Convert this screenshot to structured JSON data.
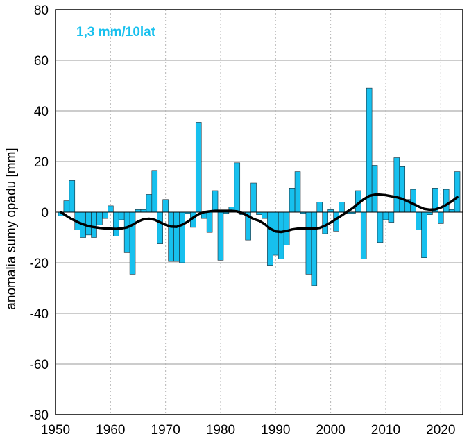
{
  "chart_data": {
    "type": "bar",
    "title": "",
    "xlabel": "",
    "ylabel": "anomalia sumy opadu [mm]",
    "trend_text": "1,3 mm/10lat",
    "xlim": [
      1950,
      2024
    ],
    "ylim": [
      -80,
      80
    ],
    "x_ticks": [
      1950,
      1960,
      1970,
      1980,
      1990,
      2000,
      2010,
      2020
    ],
    "y_ticks": [
      -80,
      -60,
      -40,
      -20,
      0,
      20,
      40,
      60,
      80
    ],
    "grid": {
      "horizontal": "solid",
      "vertical": "dotted"
    },
    "colors": {
      "bars": "#17c0ee",
      "bar_edge": "#1b2a33",
      "smooth": "#000000",
      "trend_text": "#17c0ee",
      "grid": "#9a9a9a"
    },
    "series": [
      {
        "kind": "bar",
        "x": [
          1951,
          1952,
          1953,
          1954,
          1955,
          1956,
          1957,
          1958,
          1959,
          1960,
          1961,
          1962,
          1963,
          1964,
          1965,
          1966,
          1967,
          1968,
          1969,
          1970,
          1971,
          1972,
          1973,
          1974,
          1975,
          1976,
          1977,
          1978,
          1979,
          1980,
          1981,
          1982,
          1983,
          1984,
          1985,
          1986,
          1987,
          1988,
          1989,
          1990,
          1991,
          1992,
          1993,
          1994,
          1995,
          1996,
          1997,
          1998,
          1999,
          2000,
          2001,
          2002,
          2003,
          2004,
          2005,
          2006,
          2007,
          2008,
          2009,
          2010,
          2011,
          2012,
          2013,
          2014,
          2015,
          2016,
          2017,
          2018,
          2019,
          2020,
          2021,
          2022,
          2023
        ],
        "values": [
          -1.5,
          4.5,
          12.5,
          -7,
          -10,
          -9,
          -10,
          -5,
          -2.5,
          2.5,
          -9.5,
          -3,
          -16,
          -24.5,
          1,
          1,
          7,
          16.5,
          -12.5,
          5,
          -19.5,
          -19.5,
          -20,
          -0.5,
          -6,
          35.5,
          -2.5,
          -8,
          8.5,
          -19,
          -0.5,
          2,
          19.5,
          -1,
          -11,
          11.5,
          -1,
          -2.5,
          -21,
          -17,
          -18.5,
          -13,
          9.5,
          16,
          -0.5,
          -24.5,
          -29,
          4,
          -8.5,
          1,
          -7.5,
          4,
          -0.5,
          -0.5,
          8.5,
          -18.5,
          49,
          18.5,
          -12,
          -3,
          -4,
          21.5,
          18,
          5,
          9,
          -7,
          -18,
          -1,
          9.5,
          -4.5,
          9,
          1,
          16
        ]
      },
      {
        "kind": "line",
        "x": [
          1951,
          1952,
          1953,
          1954,
          1955,
          1956,
          1957,
          1958,
          1959,
          1960,
          1961,
          1962,
          1963,
          1964,
          1965,
          1966,
          1967,
          1968,
          1969,
          1970,
          1971,
          1972,
          1973,
          1974,
          1975,
          1976,
          1977,
          1978,
          1979,
          1980,
          1981,
          1982,
          1983,
          1984,
          1985,
          1986,
          1987,
          1988,
          1989,
          1990,
          1991,
          1992,
          1993,
          1994,
          1995,
          1996,
          1997,
          1998,
          1999,
          2000,
          2001,
          2002,
          2003,
          2004,
          2005,
          2006,
          2007,
          2008,
          2009,
          2010,
          2011,
          2012,
          2013,
          2014,
          2015,
          2016,
          2017,
          2018,
          2019,
          2020,
          2021,
          2022,
          2023
        ],
        "values": [
          0,
          -1.5,
          -2.8,
          -3.9,
          -4.8,
          -5.5,
          -5.9,
          -6.2,
          -6.4,
          -6.5,
          -6.6,
          -6.4,
          -6,
          -5,
          -3.7,
          -2.8,
          -2.6,
          -3,
          -4,
          -5,
          -5.7,
          -5.8,
          -5,
          -3.8,
          -2.2,
          -0.8,
          0,
          0.3,
          0.5,
          0.5,
          0.5,
          0.5,
          0.3,
          -0.4,
          -1.5,
          -2.7,
          -3.4,
          -4.7,
          -6.5,
          -7.6,
          -7.8,
          -7.4,
          -6.8,
          -6.5,
          -6.4,
          -6.4,
          -6.5,
          -6.2,
          -5.3,
          -4.1,
          -2.7,
          -1.3,
          0.2,
          1.6,
          3.4,
          5.1,
          6.4,
          6.9,
          6.9,
          6.7,
          6.3,
          5.9,
          5.3,
          4.3,
          3.3,
          2.2,
          1.3,
          1,
          1.1,
          1.8,
          2.9,
          4.3,
          5.9
        ]
      }
    ]
  }
}
